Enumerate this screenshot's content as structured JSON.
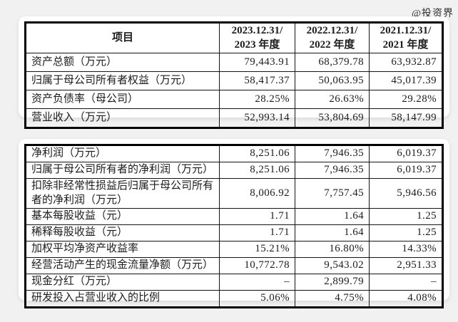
{
  "watermark": "@投资界",
  "summary_table": {
    "item_header": "项目",
    "period_columns": [
      {
        "line1": "2023.12.31/",
        "line2": "2023 年度"
      },
      {
        "line1": "2022.12.31/",
        "line2": "2022 年度"
      },
      {
        "line1": "2021.12.31/",
        "line2": "2021 年度"
      }
    ],
    "rows": [
      {
        "label": "资产总额（万元）",
        "values": [
          "79,443.91",
          "68,379.78",
          "63,932.87"
        ]
      },
      {
        "label": "归属于母公司所有者权益（万元）",
        "values": [
          "58,417.37",
          "50,063.95",
          "45,017.39"
        ]
      },
      {
        "label": "资产负债率（母公司）",
        "values": [
          "28.25%",
          "26.63%",
          "29.28%"
        ]
      },
      {
        "label": "营业收入（万元）",
        "values": [
          "52,993.14",
          "53,804.69",
          "58,147.99"
        ]
      }
    ]
  },
  "detail_table": {
    "rows": [
      {
        "label": "净利润（万元）",
        "values": [
          "8,251.06",
          "7,946.35",
          "6,019.37"
        ]
      },
      {
        "label": "归属于母公司所有者的净利润（万元）",
        "values": [
          "8,251.06",
          "7,946.35",
          "6,019.37"
        ]
      },
      {
        "label": "扣除非经常性损益后归属于母公司所有者的净利润（万元）",
        "values": [
          "8,006.92",
          "7,757.45",
          "5,946.56"
        ]
      },
      {
        "label": "基本每股收益（元）",
        "values": [
          "1.71",
          "1.64",
          "1.25"
        ]
      },
      {
        "label": "稀释每股收益（元）",
        "values": [
          "1.71",
          "1.64",
          "1.25"
        ]
      },
      {
        "label": "加权平均净资产收益率",
        "values": [
          "15.21%",
          "16.80%",
          "14.33%"
        ]
      },
      {
        "label": "经营活动产生的现金流量净额（万元）",
        "values": [
          "10,772.78",
          "9,543.02",
          "2,951.33"
        ]
      },
      {
        "label": "现金分红（万元）",
        "values": [
          "–",
          "2,899.79",
          "–"
        ]
      },
      {
        "label": "研发投入占营业收入的比例",
        "values": [
          "5.06%",
          "4.75%",
          "4.08%"
        ]
      }
    ]
  }
}
